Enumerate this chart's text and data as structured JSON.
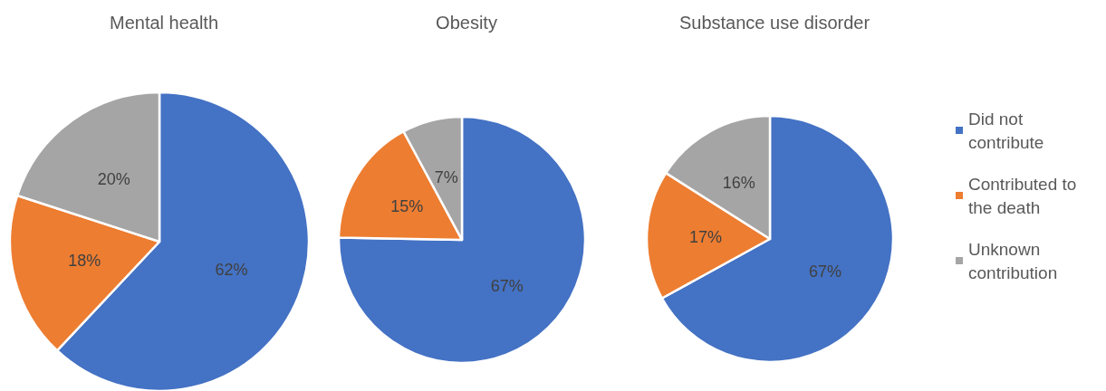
{
  "chart_data": [
    {
      "type": "pie",
      "title": "Mental health",
      "categories": [
        null,
        null,
        null
      ],
      "values": [
        62,
        18,
        20
      ],
      "colors": [
        "#4472c4",
        "#ed7d31",
        "#a5a5a5"
      ],
      "value_labels": [
        "62%",
        "18%",
        "20%"
      ]
    },
    {
      "type": "pie",
      "title": "Obesity",
      "categories": [
        null,
        null,
        null
      ],
      "values": [
        67,
        15,
        7
      ],
      "colors": [
        "#4472c4",
        "#ed7d31",
        "#a5a5a5"
      ],
      "value_labels": [
        "67%",
        "15%",
        "7%"
      ]
    },
    {
      "type": "pie",
      "title": "Substance use disorder",
      "categories": [
        "Did not contribute",
        "Contributed to the death",
        "Unknown contribution"
      ],
      "values": [
        67,
        17,
        16
      ],
      "colors": [
        "#4472c4",
        "#ed7d31",
        "#a5a5a5"
      ],
      "value_labels": [
        "67%",
        "17%",
        "16%"
      ],
      "legend": "right"
    }
  ]
}
